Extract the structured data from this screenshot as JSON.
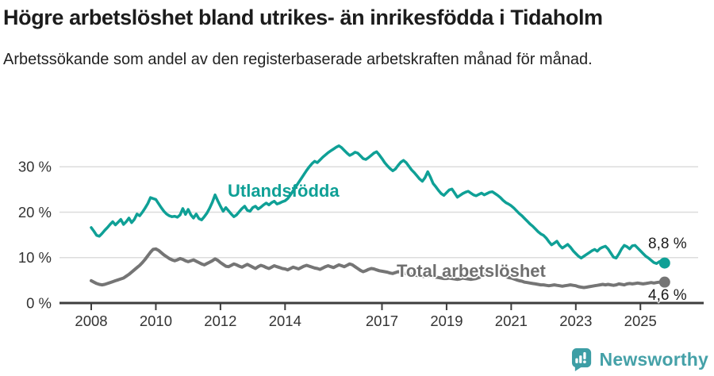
{
  "header": {
    "title": "Högre arbetslöshet bland utrikes- än inrikesfödda i Tidaholm",
    "subtitle": "Arbetssökande som andel av den registerbaserade arbetskraften månad för månad."
  },
  "chart_data": {
    "type": "line",
    "title": "Högre arbetslöshet bland utrikes- än inrikesfödda i Tidaholm",
    "subtitle": "Arbetssökande som andel av den registerbaserade arbetskraften månad för månad.",
    "x_unit": "monthly, January 2008 – October 2025",
    "x_start_year": 2008,
    "points_per_year": 12,
    "ylim": [
      0,
      36
    ],
    "yticks": [
      0,
      10,
      20,
      30
    ],
    "ytick_labels": [
      "0 %",
      "10 %",
      "20 %",
      "30 %"
    ],
    "xticks": [
      2008,
      2010,
      2012,
      2014,
      2017,
      2019,
      2021,
      2023,
      2025
    ],
    "xtick_labels": [
      "2008",
      "2010",
      "2012",
      "2014",
      "2017",
      "2019",
      "2021",
      "2023",
      "2025"
    ],
    "grid": "horizontal",
    "legend_position": "inline-labels",
    "axis_color": "#3D3D3D",
    "grid_color": "#DCDCDC",
    "tick_text_color": "#333333",
    "series": [
      {
        "name": "Total arbetslöshet",
        "color": "#757575",
        "line_width": 4,
        "end_value": 4.6,
        "end_label": "4,6 %",
        "values": [
          4.9,
          4.6,
          4.3,
          4.1,
          4.0,
          4.1,
          4.3,
          4.5,
          4.7,
          4.9,
          5.1,
          5.3,
          5.5,
          5.9,
          6.3,
          6.8,
          7.3,
          7.8,
          8.3,
          8.9,
          9.6,
          10.4,
          11.2,
          11.8,
          11.9,
          11.6,
          11.1,
          10.6,
          10.2,
          9.8,
          9.5,
          9.3,
          9.5,
          9.8,
          9.6,
          9.3,
          9.1,
          9.3,
          9.5,
          9.2,
          8.9,
          8.6,
          8.4,
          8.7,
          9.0,
          9.3,
          9.7,
          9.4,
          8.9,
          8.5,
          8.1,
          8.0,
          8.3,
          8.6,
          8.4,
          8.1,
          7.9,
          8.2,
          8.5,
          8.2,
          7.9,
          7.6,
          8.0,
          8.3,
          8.1,
          7.8,
          7.6,
          7.9,
          8.2,
          8.0,
          7.8,
          7.6,
          7.5,
          7.3,
          7.6,
          7.9,
          7.7,
          7.5,
          7.8,
          8.1,
          8.3,
          8.1,
          7.9,
          7.7,
          7.6,
          7.4,
          7.7,
          8.0,
          8.2,
          8.0,
          7.8,
          8.1,
          8.4,
          8.2,
          8.0,
          8.3,
          8.6,
          8.4,
          8.0,
          7.6,
          7.2,
          6.9,
          7.1,
          7.4,
          7.6,
          7.5,
          7.3,
          7.1,
          7.0,
          6.9,
          6.8,
          6.6,
          6.5,
          6.7,
          6.9,
          6.8,
          6.6,
          6.5,
          6.4,
          6.3,
          6.2,
          6.1,
          6.0,
          5.9,
          5.8,
          5.9,
          6.0,
          5.9,
          5.7,
          5.6,
          5.5,
          5.4,
          5.4,
          5.5,
          5.4,
          5.3,
          5.2,
          5.3,
          5.5,
          5.4,
          5.3,
          5.2,
          5.3,
          5.4,
          5.6,
          5.9,
          6.2,
          6.5,
          6.7,
          6.7,
          6.6,
          6.4,
          6.2,
          6.0,
          5.8,
          5.6,
          5.5,
          5.3,
          5.1,
          4.9,
          4.8,
          4.6,
          4.5,
          4.4,
          4.3,
          4.2,
          4.1,
          4.0,
          4.0,
          3.9,
          3.8,
          3.9,
          4.0,
          3.9,
          3.8,
          3.7,
          3.8,
          3.9,
          4.0,
          3.9,
          3.8,
          3.6,
          3.5,
          3.4,
          3.5,
          3.6,
          3.7,
          3.8,
          3.9,
          4.0,
          4.1,
          4.0,
          4.1,
          4.0,
          3.9,
          4.0,
          4.2,
          4.1,
          4.0,
          4.2,
          4.3,
          4.2,
          4.3,
          4.4,
          4.3,
          4.2,
          4.3,
          4.4,
          4.5,
          4.4,
          4.5,
          4.6,
          4.5,
          4.6
        ]
      },
      {
        "name": "Utlandsfödda",
        "color": "#0FA096",
        "line_width": 3.5,
        "end_value": 8.8,
        "end_label": "8,8 %",
        "values": [
          16.6,
          15.8,
          14.9,
          14.7,
          15.3,
          16.0,
          16.6,
          17.3,
          17.9,
          17.2,
          17.8,
          18.4,
          17.3,
          17.9,
          18.7,
          17.7,
          18.4,
          19.6,
          19.2,
          20.0,
          20.9,
          21.9,
          23.2,
          23.0,
          22.8,
          21.9,
          21.0,
          20.2,
          19.6,
          19.2,
          19.0,
          19.1,
          18.9,
          19.4,
          20.8,
          19.5,
          20.6,
          19.4,
          18.7,
          19.6,
          18.6,
          18.3,
          19.0,
          19.8,
          20.9,
          22.2,
          23.8,
          22.5,
          21.3,
          20.2,
          21.0,
          20.3,
          19.6,
          19.0,
          19.4,
          20.1,
          20.8,
          21.3,
          20.4,
          20.2,
          21.0,
          21.3,
          20.7,
          21.1,
          21.6,
          22.0,
          21.6,
          22.1,
          22.4,
          21.8,
          22.0,
          22.3,
          22.5,
          23.0,
          23.8,
          24.7,
          25.6,
          26.5,
          27.4,
          28.3,
          29.2,
          30.0,
          30.7,
          31.2,
          30.9,
          31.5,
          32.1,
          32.6,
          33.1,
          33.5,
          33.9,
          34.3,
          34.6,
          34.2,
          33.6,
          33.0,
          32.5,
          32.8,
          33.2,
          33.0,
          32.4,
          31.8,
          31.6,
          32.0,
          32.5,
          33.0,
          33.3,
          32.6,
          31.8,
          30.9,
          30.2,
          29.6,
          29.1,
          29.5,
          30.3,
          31.0,
          31.4,
          30.9,
          30.1,
          29.3,
          28.7,
          28.0,
          27.3,
          26.8,
          27.6,
          28.9,
          27.7,
          26.3,
          25.6,
          24.8,
          24.1,
          23.7,
          24.3,
          24.9,
          25.1,
          24.2,
          23.3,
          23.7,
          24.1,
          24.4,
          24.6,
          24.2,
          23.8,
          23.6,
          23.9,
          24.2,
          23.8,
          24.1,
          24.4,
          24.5,
          24.1,
          23.7,
          23.2,
          22.6,
          22.1,
          21.8,
          21.4,
          20.9,
          20.3,
          19.7,
          19.2,
          18.6,
          18.0,
          17.4,
          16.9,
          16.3,
          15.7,
          15.2,
          14.9,
          14.3,
          13.5,
          12.8,
          13.2,
          13.6,
          12.7,
          12.1,
          12.5,
          12.9,
          12.3,
          11.5,
          10.9,
          10.3,
          9.9,
          10.3,
          10.7,
          11.1,
          11.5,
          11.8,
          11.4,
          12.0,
          12.3,
          12.5,
          11.9,
          11.0,
          10.1,
          9.9,
          10.8,
          11.9,
          12.7,
          12.4,
          11.9,
          12.6,
          12.7,
          12.1,
          11.5,
          10.9,
          10.3,
          9.9,
          9.4,
          8.9,
          8.7,
          9.1,
          9.3,
          8.8
        ]
      }
    ]
  },
  "footer": {
    "brand": "Newsworthy",
    "brand_color": "#45A1A8",
    "logo_icon": "speech-bubble-bar-chart-exclamation"
  }
}
